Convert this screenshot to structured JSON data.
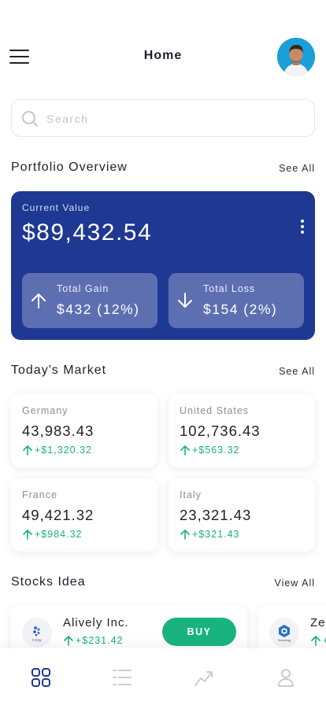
{
  "header": {
    "title": "Home",
    "menu_icon": "hamburger-menu-icon",
    "avatar": "user-avatar"
  },
  "search": {
    "placeholder": "Search",
    "value": "",
    "icon": "search-icon"
  },
  "portfolio": {
    "section_title": "Portfolio Overview",
    "see_all_label": "See All",
    "current_value_label": "Current Value",
    "current_value": "$89,432.54",
    "more_icon": "more-vertical-icon",
    "gain": {
      "label": "Total Gain",
      "value": "$432 (12%)",
      "icon": "arrow-up-icon"
    },
    "loss": {
      "label": "Total Loss",
      "value": "$154 (2%)",
      "icon": "arrow-down-icon"
    },
    "card_color": "#1f3893"
  },
  "market": {
    "section_title": "Today's Market",
    "see_all_label": "See All",
    "items": [
      {
        "country": "Germany",
        "value": "43,983.43",
        "change": "+$1,320.32"
      },
      {
        "country": "United States",
        "value": "102,736.43",
        "change": "+$563.32"
      },
      {
        "country": "France",
        "value": "49,421.32",
        "change": "+$984.32"
      },
      {
        "country": "Italy",
        "value": "23,321.43",
        "change": "+$321.43"
      }
    ],
    "positive_color": "#17b27a"
  },
  "stocks": {
    "section_title": "Stocks Idea",
    "view_all_label": "View All",
    "items": [
      {
        "name": "Alively Inc.",
        "change": "+$231.42",
        "button_label": "BUY",
        "logo_text": "Energy"
      },
      {
        "name": "Ze",
        "change": "+",
        "logo_text": "Technology"
      }
    ],
    "buy_color": "#19b47e"
  },
  "tabbar": {
    "tabs": [
      {
        "name": "home",
        "icon": "grid-icon",
        "active": true
      },
      {
        "name": "list",
        "icon": "list-icon",
        "active": false
      },
      {
        "name": "trends",
        "icon": "trend-line-icon",
        "active": false
      },
      {
        "name": "profile",
        "icon": "user-icon",
        "active": false
      }
    ],
    "active_color": "#1f3893",
    "inactive_color": "#c9ccd4"
  }
}
